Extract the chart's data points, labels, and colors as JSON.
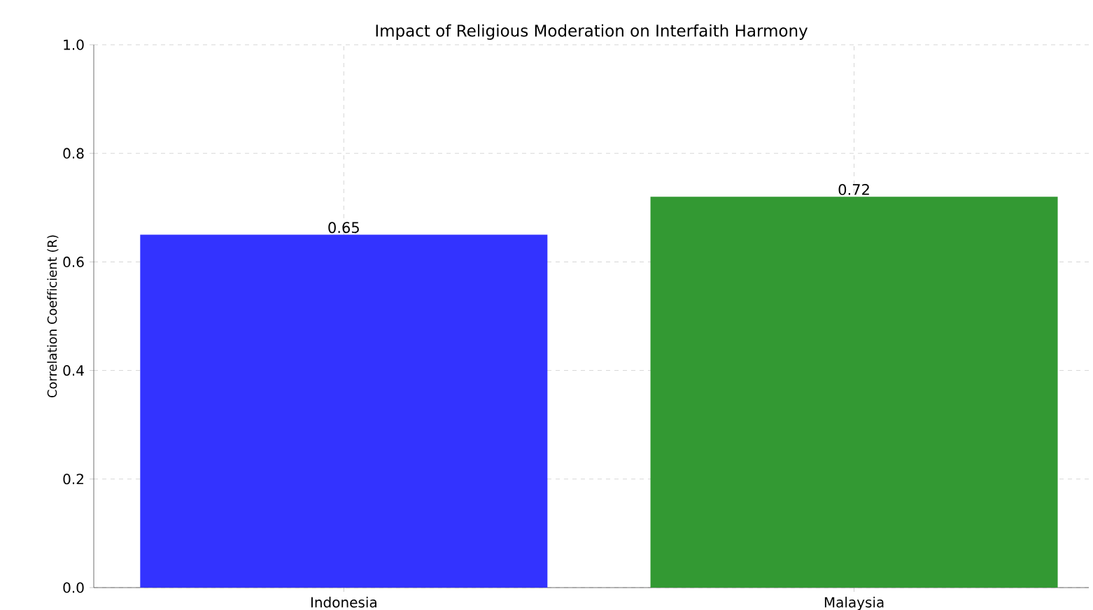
{
  "chart_data": {
    "type": "bar",
    "title": "Impact of Religious Moderation on Interfaith Harmony",
    "ylabel": "Correlation Coefficient (R)",
    "categories": [
      "Indonesia",
      "Malaysia"
    ],
    "values": [
      0.65,
      0.72
    ],
    "colors": [
      "#3333ff",
      "#339933"
    ],
    "ylim": [
      0,
      1
    ],
    "yticks": [
      {
        "value": 0,
        "label": "0.0"
      },
      {
        "value": 0.2,
        "label": "0.2"
      },
      {
        "value": 0.4,
        "label": "0.4"
      },
      {
        "value": 0.6,
        "label": "0.6"
      },
      {
        "value": 0.8,
        "label": "0.8"
      },
      {
        "value": 1,
        "label": "1.0"
      }
    ],
    "grid": true,
    "data_labels": true
  }
}
